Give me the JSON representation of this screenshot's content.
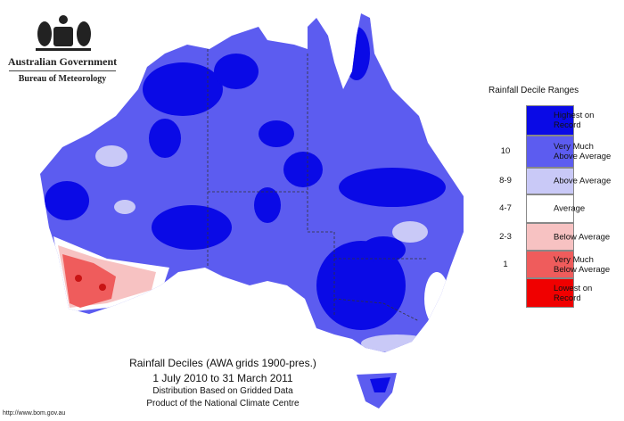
{
  "header": {
    "government": "Australian Government",
    "bureau": "Bureau of Meteorology"
  },
  "legend": {
    "title": "Rainfall Decile Ranges",
    "items": [
      {
        "label": "Highest on Record",
        "color": "#0a0ae6"
      },
      {
        "range": "10",
        "label": "Very Much Above Average",
        "color": "#5c5cf0"
      },
      {
        "range": "8-9",
        "label": "Above Average",
        "color": "#c9c9f7"
      },
      {
        "range": "4-7",
        "label": "Average",
        "color": "#ffffff"
      },
      {
        "range": "2-3",
        "label": "Below Average",
        "color": "#f7c2c2"
      },
      {
        "range": "1",
        "label": "Very Much Below Average",
        "color": "#ef5c5c"
      },
      {
        "label": "Lowest on Record",
        "color": "#f00000"
      }
    ]
  },
  "caption": {
    "lines": [
      "Rainfall Deciles (AWA grids 1900-pres.)",
      "1 July 2010 to 31 March 2011",
      "Distribution Based on Gridded Data",
      "Product of the National Climate Centre"
    ]
  },
  "url": "http://www.bom.gov.au"
}
